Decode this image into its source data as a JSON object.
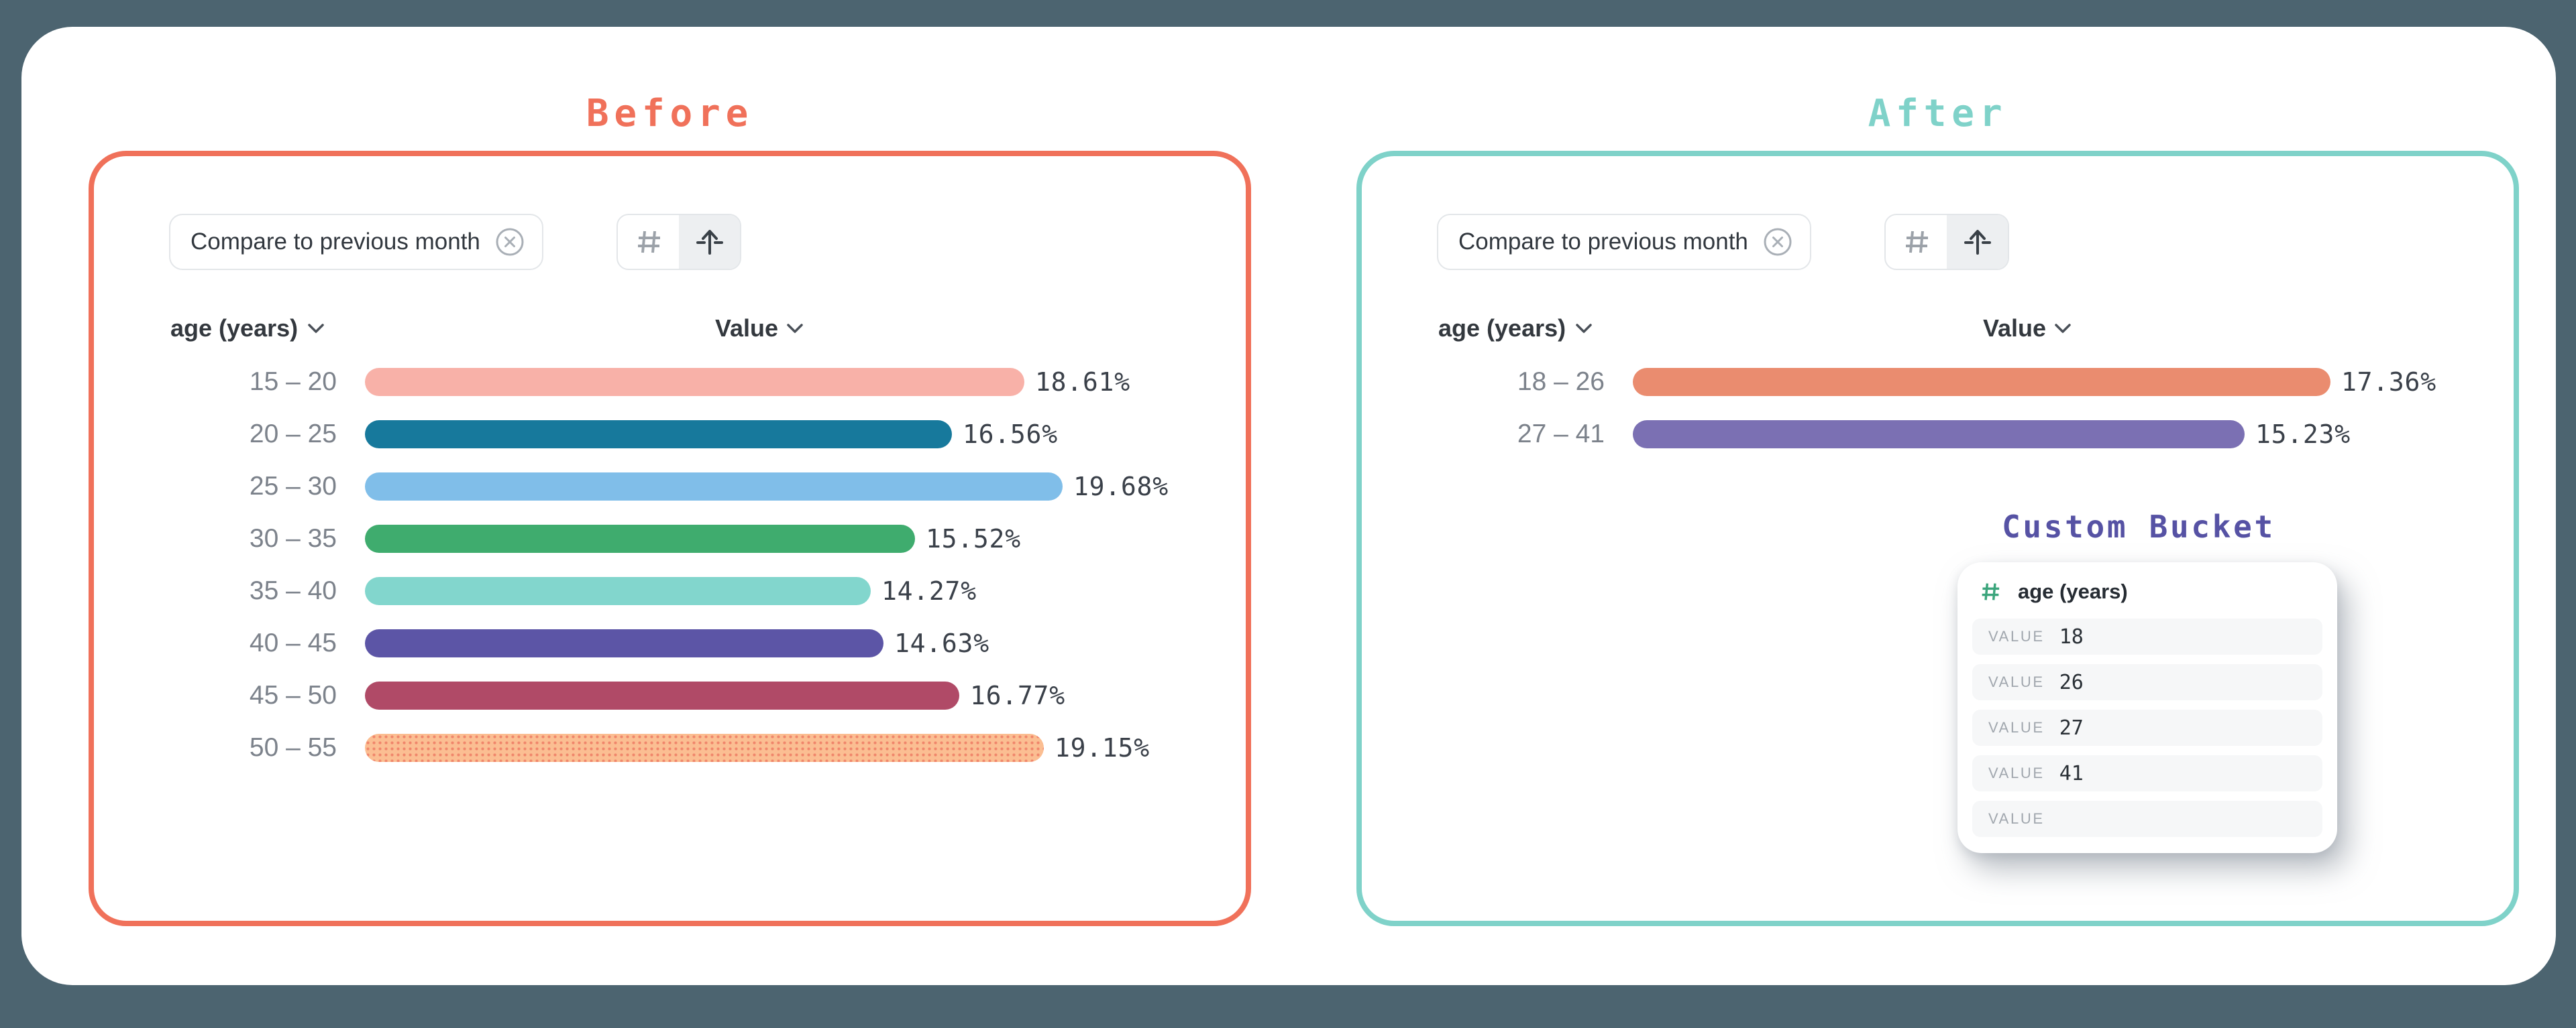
{
  "canvas": {
    "background": "#4C6470",
    "card_background": "#FFFFFF"
  },
  "panels": {
    "before": {
      "title": "Before",
      "accent": "#F0715A",
      "chip_label": "Compare to previous month",
      "column_dimension": "age (years)",
      "column_value": "Value"
    },
    "after": {
      "title": "After",
      "accent": "#7FD2C9",
      "chip_label": "Compare to previous month",
      "column_dimension": "age (years)",
      "column_value": "Value",
      "custom_bucket": {
        "title": "Custom Bucket",
        "accent": "#5652A4",
        "field_label": "age (years)",
        "value_label": "VALUE",
        "values": [
          "18",
          "26",
          "27",
          "41",
          ""
        ]
      }
    }
  },
  "icons": {
    "chip_close": "circled-x",
    "seg_left": "hash",
    "seg_right": "arrow-up-from-line",
    "column_sort": "chevron-down",
    "bucket_field": "hash"
  },
  "icon_colors": {
    "chip_close": "#A9AFB6",
    "hash_gray": "#9CA2A9",
    "arrow_dark": "#394047",
    "chevron": "#4A5058",
    "bucket_hash_green": "#3BA57C"
  },
  "chart_data": [
    {
      "id": "before",
      "type": "bar",
      "orientation": "horizontal",
      "title": "Before",
      "unit": "%",
      "categories": [
        "15 – 20",
        "20 – 25",
        "25 – 30",
        "30 – 35",
        "35 – 40",
        "40 – 45",
        "45 – 50",
        "50 – 55"
      ],
      "values": [
        18.61,
        16.56,
        19.68,
        15.52,
        14.27,
        14.63,
        16.77,
        19.15
      ],
      "value_labels": [
        "18.61%",
        "16.56%",
        "19.68%",
        "15.52%",
        "14.27%",
        "14.63%",
        "16.77%",
        "19.15%"
      ],
      "colors": [
        "#F8B1A8",
        "#17799C",
        "#80BEE9",
        "#3FAC6E",
        "#82D6CD",
        "#5C55A6",
        "#B04A67",
        "#FBBE92"
      ],
      "patterns": [
        null,
        null,
        null,
        null,
        null,
        null,
        null,
        {
          "style": "dots",
          "dot_color": "#F0866B"
        }
      ]
    },
    {
      "id": "after",
      "type": "bar",
      "orientation": "horizontal",
      "title": "After",
      "unit": "%",
      "categories": [
        "18 – 26",
        "27 – 41"
      ],
      "values": [
        17.36,
        15.23
      ],
      "value_labels": [
        "17.36%",
        "15.23%"
      ],
      "colors": [
        "#EA8C6F",
        "#7B70B3"
      ],
      "patterns": [
        null,
        null
      ]
    }
  ]
}
